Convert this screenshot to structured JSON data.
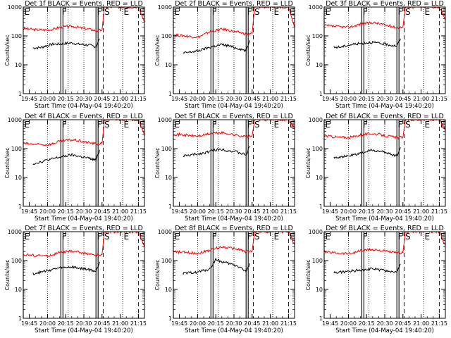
{
  "chart_data": {
    "type": "line",
    "layout": "3x3 grid",
    "ylabel": "Counts/sec",
    "xlabel": "Start Time (04-May-04 19:40:20)",
    "y_scale": "log",
    "ylim": [
      1,
      1000
    ],
    "xlim": [
      "19:40",
      "21:20"
    ],
    "y_ticks": [
      "1",
      "10",
      "100",
      "1000"
    ],
    "x_tick_labels": [
      "19:45",
      "20:00",
      "20:15",
      "20:30",
      "20:45",
      "21:00",
      "21:15"
    ],
    "x_ticks": [
      "19:45",
      "20:00",
      "20:15",
      "20:30",
      "20:45",
      "21:00",
      "21:15"
    ],
    "series_colors": {
      "events": "#000000",
      "lld": "#ff0000"
    },
    "markers": [
      {
        "label": "E",
        "time": "19:40",
        "style": "solid"
      },
      {
        "label": "F",
        "time": "20:11",
        "style": "solid"
      },
      {
        "label": "F",
        "time": "20:40",
        "style": "solid"
      },
      {
        "label": "S",
        "time": "20:46",
        "style": "dashed"
      },
      {
        "label": "E",
        "time": "21:02",
        "style": "dotted"
      },
      {
        "label": "E",
        "time": "21:15",
        "style": "dashed"
      }
    ],
    "extra_dotted_times": [
      "20:00",
      "20:17",
      "20:30"
    ],
    "panels": [
      {
        "title": "Det 1f BLACK = Events, RED = LLD",
        "events_x": [
          "19:48",
          "19:55",
          "20:00",
          "20:05",
          "20:10",
          "20:15",
          "20:20",
          "20:25",
          "20:30",
          "20:35",
          "20:40",
          "20:43"
        ],
        "events_y": [
          38,
          40,
          47,
          52,
          52,
          55,
          57,
          52,
          50,
          47,
          42,
          80
        ],
        "lld_x": [
          "19:40",
          "19:50",
          "20:00",
          "20:05",
          "20:10",
          "20:20",
          "20:25",
          "20:30",
          "20:35",
          "20:40",
          "20:45",
          "20:47",
          "21:15",
          "21:20"
        ],
        "lld_y": [
          180,
          165,
          160,
          170,
          200,
          215,
          200,
          180,
          170,
          150,
          160,
          1000,
          1000,
          300
        ]
      },
      {
        "title": "Det 2f BLACK = Events, RED = LLD",
        "events_x": [
          "19:48",
          "19:55",
          "20:00",
          "20:05",
          "20:10",
          "20:15",
          "20:20",
          "20:25",
          "20:30",
          "20:35",
          "20:40",
          "20:43"
        ],
        "events_y": [
          25,
          28,
          30,
          35,
          40,
          45,
          50,
          46,
          40,
          36,
          30,
          70
        ],
        "lld_x": [
          "19:40",
          "19:50",
          "20:00",
          "20:05",
          "20:10",
          "20:20",
          "20:25",
          "20:30",
          "20:35",
          "20:40",
          "20:45",
          "20:47",
          "21:15",
          "21:20"
        ],
        "lld_y": [
          110,
          100,
          90,
          110,
          140,
          170,
          160,
          140,
          130,
          115,
          120,
          1000,
          1000,
          200
        ]
      },
      {
        "title": "Det 3f BLACK = Events, RED = LLD",
        "events_x": [
          "19:48",
          "19:55",
          "20:00",
          "20:05",
          "20:10",
          "20:15",
          "20:20",
          "20:25",
          "20:30",
          "20:35",
          "20:40",
          "20:43"
        ],
        "events_y": [
          40,
          42,
          48,
          52,
          55,
          58,
          60,
          55,
          52,
          48,
          45,
          80
        ],
        "lld_x": [
          "19:40",
          "19:50",
          "20:00",
          "20:05",
          "20:10",
          "20:20",
          "20:25",
          "20:30",
          "20:35",
          "20:40",
          "20:45",
          "20:47",
          "21:15",
          "21:20"
        ],
        "lld_y": [
          230,
          210,
          200,
          220,
          260,
          290,
          270,
          240,
          220,
          190,
          200,
          1000,
          1000,
          350
        ]
      },
      {
        "title": "Det 4f BLACK = Events, RED = LLD",
        "events_x": [
          "19:48",
          "19:55",
          "20:00",
          "20:05",
          "20:10",
          "20:15",
          "20:20",
          "20:25",
          "20:30",
          "20:35",
          "20:40",
          "20:43"
        ],
        "events_y": [
          30,
          35,
          40,
          45,
          50,
          55,
          60,
          55,
          50,
          45,
          40,
          90
        ],
        "lld_x": [
          "19:40",
          "19:50",
          "20:00",
          "20:05",
          "20:10",
          "20:20",
          "20:25",
          "20:30",
          "20:35",
          "20:40",
          "20:45",
          "20:47",
          "21:15",
          "21:20"
        ],
        "lld_y": [
          150,
          140,
          135,
          150,
          180,
          200,
          190,
          170,
          160,
          145,
          150,
          1000,
          1000,
          300
        ]
      },
      {
        "title": "Det 5f BLACK = Events, RED = LLD",
        "events_x": [
          "19:48",
          "19:55",
          "20:00",
          "20:05",
          "20:10",
          "20:15",
          "20:20",
          "20:25",
          "20:30",
          "20:35",
          "20:40",
          "20:43"
        ],
        "events_y": [
          55,
          60,
          65,
          70,
          80,
          90,
          95,
          85,
          80,
          70,
          60,
          120
        ],
        "lld_x": [
          "19:40",
          "19:50",
          "20:00",
          "20:05",
          "20:10",
          "20:20",
          "20:25",
          "20:30",
          "20:35",
          "20:40",
          "20:45",
          "20:47",
          "21:15",
          "21:20"
        ],
        "lld_y": [
          320,
          290,
          270,
          290,
          330,
          350,
          330,
          300,
          280,
          260,
          270,
          1000,
          1000,
          500
        ]
      },
      {
        "title": "Det 6f BLACK = Events, RED = LLD",
        "events_x": [
          "19:48",
          "19:55",
          "20:00",
          "20:05",
          "20:10",
          "20:15",
          "20:20",
          "20:25",
          "20:30",
          "20:35",
          "20:40",
          "20:43"
        ],
        "events_y": [
          50,
          52,
          55,
          60,
          70,
          80,
          90,
          80,
          75,
          65,
          55,
          110
        ],
        "lld_x": [
          "19:40",
          "19:50",
          "20:00",
          "20:05",
          "20:10",
          "20:20",
          "20:25",
          "20:30",
          "20:35",
          "20:40",
          "20:45",
          "20:47",
          "21:15",
          "21:20"
        ],
        "lld_y": [
          280,
          250,
          240,
          260,
          300,
          330,
          310,
          280,
          260,
          240,
          250,
          1000,
          1000,
          400
        ]
      },
      {
        "title": "Det 7f BLACK = Events, RED = LLD",
        "events_x": [
          "19:48",
          "19:55",
          "20:00",
          "20:05",
          "20:10",
          "20:15",
          "20:20",
          "20:25",
          "20:30",
          "20:35",
          "20:40",
          "20:43"
        ],
        "events_y": [
          35,
          40,
          45,
          50,
          55,
          58,
          60,
          55,
          52,
          48,
          42,
          90
        ],
        "lld_x": [
          "19:40",
          "19:50",
          "20:00",
          "20:05",
          "20:10",
          "20:20",
          "20:25",
          "20:30",
          "20:35",
          "20:40",
          "20:45",
          "20:47",
          "21:15",
          "21:20"
        ],
        "lld_y": [
          160,
          150,
          145,
          160,
          190,
          210,
          200,
          180,
          170,
          150,
          160,
          1000,
          1000,
          300
        ]
      },
      {
        "title": "Det 8f BLACK = Events, RED = LLD",
        "events_x": [
          "19:48",
          "19:55",
          "20:00",
          "20:05",
          "20:10",
          "20:15",
          "20:20",
          "20:25",
          "20:30",
          "20:35",
          "20:40",
          "20:43"
        ],
        "events_y": [
          35,
          38,
          40,
          45,
          50,
          110,
          90,
          80,
          70,
          60,
          40,
          80
        ],
        "lld_x": [
          "19:40",
          "19:50",
          "20:00",
          "20:05",
          "20:10",
          "20:20",
          "20:25",
          "20:30",
          "20:35",
          "20:40",
          "20:45",
          "20:47",
          "21:15",
          "21:20"
        ],
        "lld_y": [
          200,
          190,
          180,
          200,
          230,
          300,
          280,
          260,
          240,
          200,
          210,
          1000,
          1000,
          350
        ]
      },
      {
        "title": "Det 9f BLACK = Events, RED = LLD",
        "events_x": [
          "19:48",
          "19:55",
          "20:00",
          "20:05",
          "20:10",
          "20:15",
          "20:20",
          "20:25",
          "20:30",
          "20:35",
          "20:40",
          "20:43"
        ],
        "events_y": [
          38,
          40,
          42,
          45,
          48,
          50,
          52,
          48,
          45,
          42,
          40,
          75
        ],
        "lld_x": [
          "19:40",
          "19:50",
          "20:00",
          "20:05",
          "20:10",
          "20:20",
          "20:25",
          "20:30",
          "20:35",
          "20:40",
          "20:45",
          "20:47",
          "21:15",
          "21:20"
        ],
        "lld_y": [
          200,
          185,
          175,
          190,
          220,
          240,
          230,
          210,
          200,
          180,
          190,
          1000,
          1000,
          320
        ]
      }
    ]
  }
}
